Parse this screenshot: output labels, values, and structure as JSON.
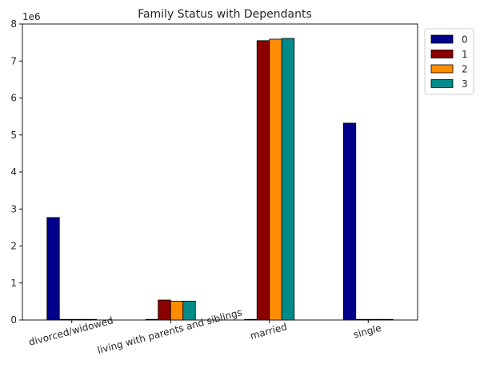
{
  "chart_data": {
    "type": "bar",
    "title": "Family Status with Dependants",
    "xlabel": "",
    "ylabel": "",
    "y_offset_label": "1e6",
    "ylim": [
      0,
      8000000
    ],
    "yticks": [
      0,
      1000000,
      2000000,
      3000000,
      4000000,
      5000000,
      6000000,
      7000000,
      8000000
    ],
    "ytick_labels": [
      "0",
      "1",
      "2",
      "3",
      "4",
      "5",
      "6",
      "7",
      "8"
    ],
    "categories": [
      "divorced/widowed",
      "living with parents and siblings",
      "married",
      "single"
    ],
    "series": [
      {
        "name": "0",
        "color": "#00008b",
        "values": [
          2770000,
          10000,
          10000,
          5320000
        ]
      },
      {
        "name": "1",
        "color": "#8b0000",
        "values": [
          10000,
          540000,
          7550000,
          10000
        ]
      },
      {
        "name": "2",
        "color": "#ff8c00",
        "values": [
          10000,
          510000,
          7590000,
          10000
        ]
      },
      {
        "name": "3",
        "color": "#008b8b",
        "values": [
          10000,
          510000,
          7610000,
          10000
        ]
      }
    ],
    "grid": false,
    "legend_position": "outside-top-right"
  }
}
